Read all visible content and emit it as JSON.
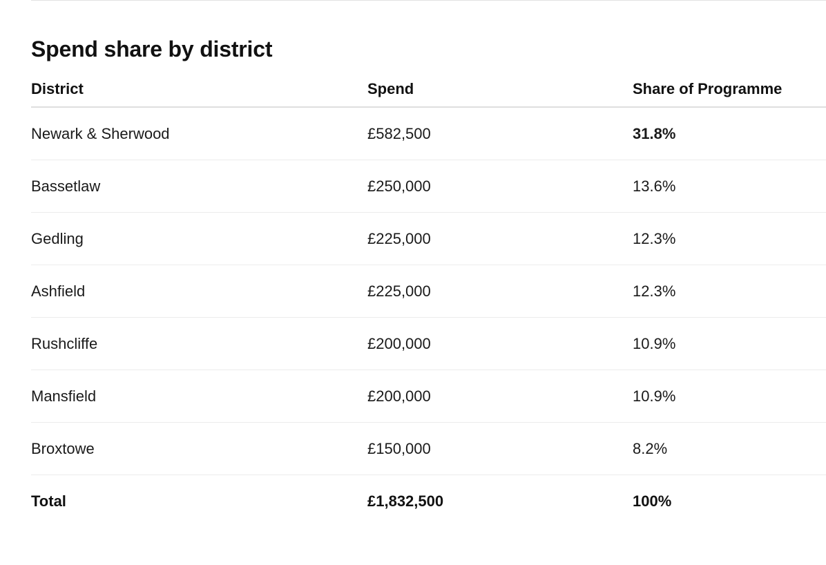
{
  "title": "Spend share by district",
  "columns": {
    "district": "District",
    "spend": "Spend",
    "share": "Share of Programme"
  },
  "rows": [
    {
      "district": "Newark & Sherwood",
      "spend": "£582,500",
      "share": "31.8%"
    },
    {
      "district": "Bassetlaw",
      "spend": "£250,000",
      "share": "13.6%"
    },
    {
      "district": "Gedling",
      "spend": "£225,000",
      "share": "12.3%"
    },
    {
      "district": "Ashfield",
      "spend": "£225,000",
      "share": "12.3%"
    },
    {
      "district": "Rushcliffe",
      "spend": "£200,000",
      "share": "10.9%"
    },
    {
      "district": "Mansfield",
      "spend": "£200,000",
      "share": "10.9%"
    },
    {
      "district": "Broxtowe",
      "spend": "£150,000",
      "share": "8.2%"
    }
  ],
  "total": {
    "district": "Total",
    "spend": "£1,832,500",
    "share": "100%"
  }
}
